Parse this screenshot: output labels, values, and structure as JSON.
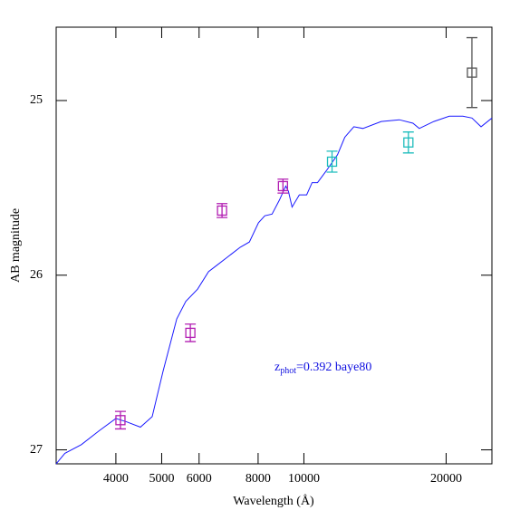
{
  "chart_data": {
    "type": "sed",
    "xlabel": "Wavelength (Å)",
    "ylabel": "AB magnitude",
    "annotation": {
      "main": "z",
      "sub": "phot",
      "rest": "=0.392 baye80",
      "color": "#1010e0"
    },
    "xlim": [
      2990,
      25000
    ],
    "ylim": [
      27.08,
      24.58
    ],
    "xscale": "log",
    "xticks": [
      4000,
      5000,
      6000,
      8000,
      10000,
      20000
    ],
    "yticks": [
      25,
      26,
      27
    ],
    "model": {
      "color": "#1a1aff",
      "x": [
        2990,
        3120,
        3380,
        3690,
        4000,
        4217,
        4508,
        4775,
        5035,
        5381,
        5623,
        5957,
        6283,
        6566,
        6863,
        7334,
        7667,
        8013,
        8265,
        8564,
        8874,
        9153,
        9275,
        9441,
        9781,
        10133,
        10406,
        10687,
        11170,
        11781,
        12206,
        12757,
        13335,
        14573,
        15918,
        17013,
        17549,
        18836,
        20309,
        21700,
        22690,
        23714,
        25000
      ],
      "values": [
        27.08,
        27.02,
        26.97,
        26.89,
        26.82,
        26.84,
        26.87,
        26.81,
        26.55,
        26.25,
        26.15,
        26.08,
        25.98,
        25.94,
        25.9,
        25.84,
        25.81,
        25.7,
        25.66,
        25.65,
        25.57,
        25.49,
        25.52,
        25.61,
        25.54,
        25.54,
        25.47,
        25.47,
        25.4,
        25.31,
        25.21,
        25.15,
        25.16,
        25.12,
        25.11,
        25.13,
        25.16,
        25.12,
        25.09,
        25.09,
        25.1,
        25.15,
        25.1
      ]
    },
    "series": [
      {
        "color": "#b21eb2",
        "x": [
          4090,
          5750,
          6710,
          9030
        ],
        "values": [
          26.83,
          26.33,
          25.63,
          25.49
        ],
        "errors": [
          0.05,
          0.05,
          0.04,
          0.04
        ]
      },
      {
        "color": "#1ebdbd",
        "x": [
          11470,
          16640
        ],
        "values": [
          25.35,
          25.24
        ],
        "errors": [
          0.06,
          0.06
        ]
      },
      {
        "color": "#555555",
        "x": [
          22680
        ],
        "values": [
          24.84
        ],
        "errors": [
          0.2
        ]
      }
    ]
  }
}
